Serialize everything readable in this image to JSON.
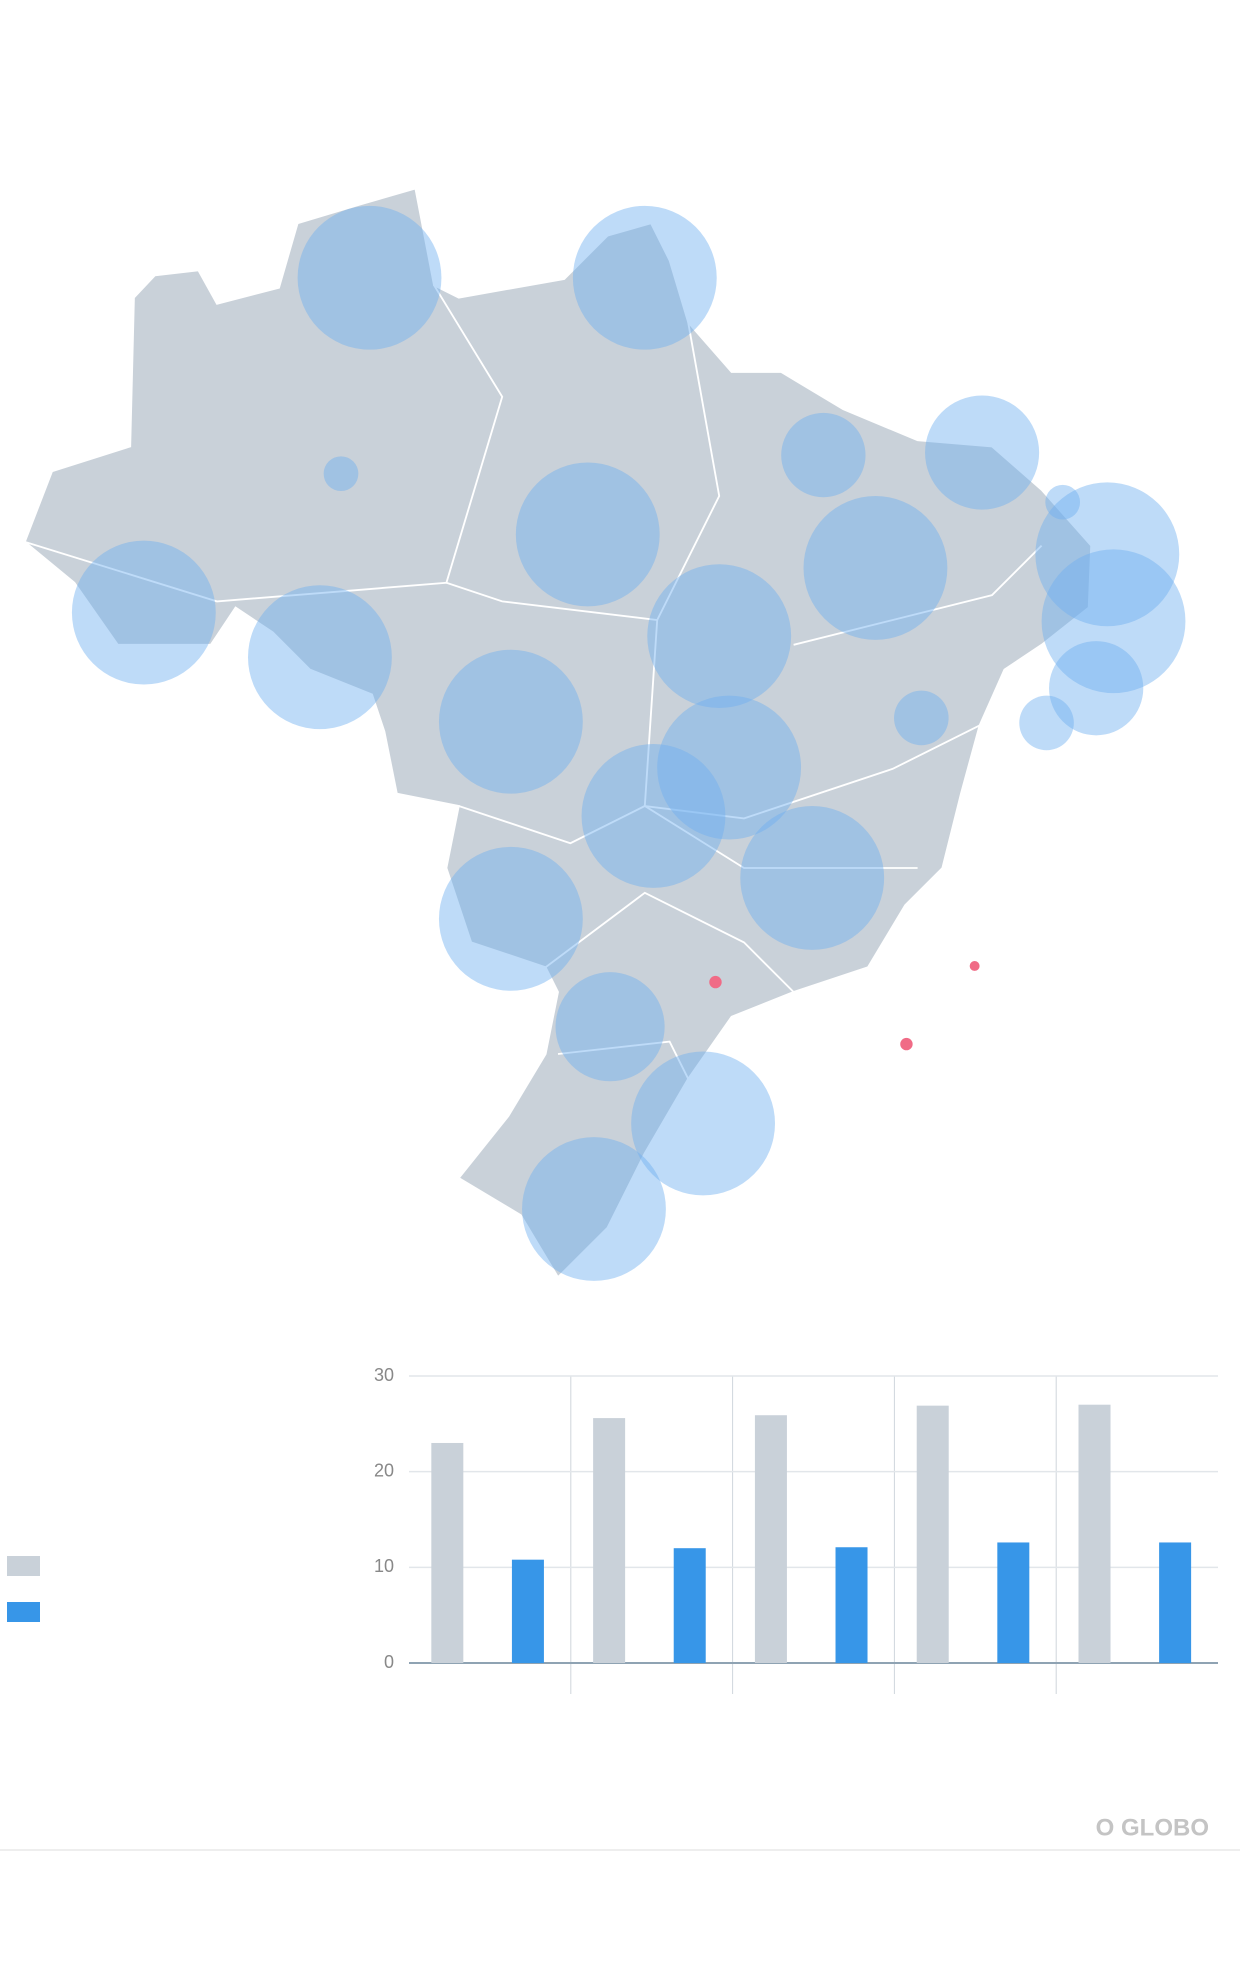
{
  "chart_data": {
    "type": "bar",
    "categories": [
      null,
      null,
      null,
      null,
      null
    ],
    "series": [
      {
        "color": "#c9d1d9",
        "values": [
          23,
          25.6,
          25.9,
          26.9,
          27
        ]
      },
      {
        "color": "#3796e8",
        "values": [
          10.8,
          12,
          12.1,
          12.6,
          12.6
        ]
      }
    ],
    "ylim": [
      0,
      30
    ],
    "yticks": [
      0,
      10,
      20,
      30
    ],
    "grid": true
  },
  "brand": "O GLOBO"
}
